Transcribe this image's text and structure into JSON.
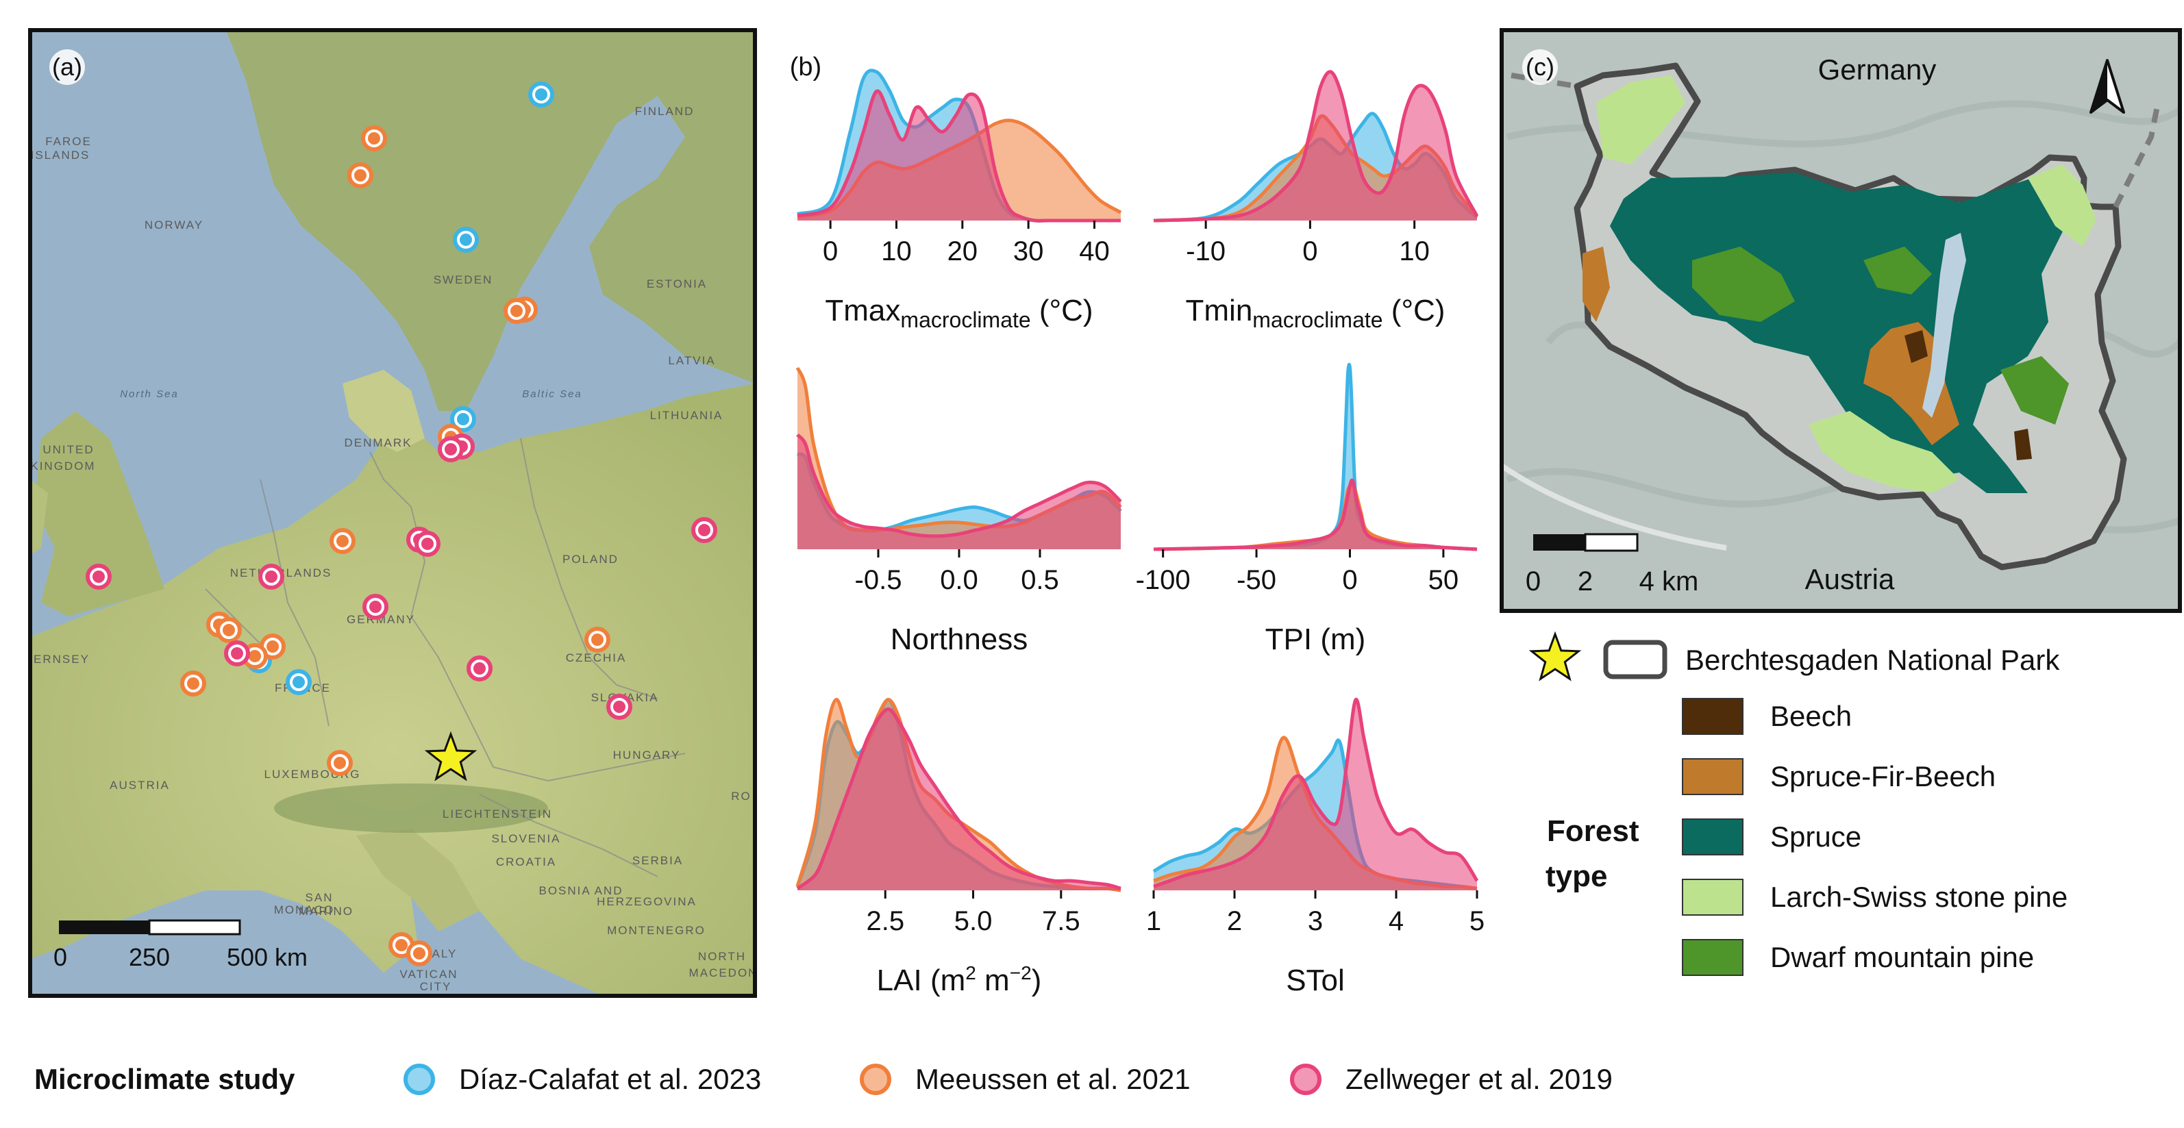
{
  "panels": {
    "a": {
      "label": "(a)"
    },
    "b": {
      "label": "(b)"
    },
    "c": {
      "label": "(c)"
    }
  },
  "colors": {
    "diaz": "#3cb4e6",
    "meeussen": "#f07f3c",
    "zellweger": "#e8427a",
    "star": "#f5f021",
    "beech": "#4f2c0a",
    "spruce_fir_beech": "#c07a2c",
    "spruce": "#0a6b5e",
    "larch": "#bde28e",
    "dwarf_pine": "#4e952a",
    "park_outline": "#4a4a4a"
  },
  "map_a": {
    "country_labels": [
      "FAROE",
      "ISLANDS",
      "NORWAY",
      "SWEDEN",
      "FINLAND",
      "ESTONIA",
      "LATVIA",
      "LITHUANIA",
      "DENMARK",
      "UNITED",
      "KINGDOM",
      "NETHERLANDS",
      "GERMANY",
      "POLAND",
      "CZECHIA",
      "SLOVAKIA",
      "HUNGARY",
      "AUSTRIA",
      "FRANCE",
      "LUXEMBOURG",
      "LIECHTENSTEIN",
      "SLOVENIA",
      "CROATIA",
      "BOSNIA AND",
      "HERZEGOVINA",
      "MONTENEGRO",
      "SERBIA",
      "SAN",
      "MARINO",
      "MONACO",
      "ITALY",
      "VATICAN",
      "CITY",
      "NORTH",
      "MACEDON",
      "ERNSEY",
      "RO",
      "North Sea",
      "Baltic Sea"
    ],
    "scalebar": {
      "ticks": [
        "0",
        "250",
        "500 km"
      ]
    },
    "points": {
      "diaz": [
        [
          790,
          138
        ],
        [
          680,
          350
        ],
        [
          676,
          612
        ],
        [
          378,
          964
        ],
        [
          436,
          996
        ]
      ],
      "meeussen": [
        [
          546,
          202
        ],
        [
          526,
          256
        ],
        [
          766,
          452
        ],
        [
          754,
          454
        ],
        [
          658,
          638
        ],
        [
          500,
          790
        ],
        [
          320,
          912
        ],
        [
          334,
          920
        ],
        [
          398,
          944
        ],
        [
          372,
          958
        ],
        [
          282,
          998
        ],
        [
          872,
          934
        ],
        [
          496,
          1114
        ],
        [
          586,
          1380
        ],
        [
          612,
          1392
        ]
      ],
      "zellweger": [
        [
          674,
          652
        ],
        [
          658,
          656
        ],
        [
          1028,
          774
        ],
        [
          612,
          788
        ],
        [
          624,
          794
        ],
        [
          144,
          842
        ],
        [
          396,
          842
        ],
        [
          548,
          886
        ],
        [
          346,
          954
        ],
        [
          700,
          976
        ],
        [
          904,
          1032
        ]
      ]
    },
    "star": [
      658,
      1108
    ]
  },
  "chart_data": [
    {
      "type": "area",
      "title": "",
      "xlabel_main": "Tmax",
      "xlabel_sub": "macroclimate",
      "xlabel_unit": " (°C)",
      "xlim": [
        -5,
        44
      ],
      "ticks": [
        0,
        10,
        20,
        30,
        40
      ],
      "tick_labels": [
        "0",
        "10",
        "20",
        "30",
        "40"
      ],
      "x": [
        -5,
        0,
        3,
        5,
        7,
        9,
        11,
        13,
        15,
        17,
        19,
        21,
        23,
        25,
        27,
        29,
        31,
        33,
        35,
        37,
        39,
        41,
        44
      ],
      "series": [
        {
          "key": "diaz",
          "values": [
            0.04,
            0.12,
            0.55,
            0.88,
            0.92,
            0.8,
            0.62,
            0.58,
            0.64,
            0.7,
            0.75,
            0.7,
            0.45,
            0.18,
            0.05,
            0.02,
            0,
            0,
            0,
            0,
            0,
            0,
            0
          ]
        },
        {
          "key": "meeussen",
          "values": [
            0.02,
            0.06,
            0.18,
            0.3,
            0.36,
            0.34,
            0.32,
            0.34,
            0.38,
            0.42,
            0.46,
            0.5,
            0.55,
            0.6,
            0.62,
            0.6,
            0.55,
            0.48,
            0.4,
            0.3,
            0.2,
            0.12,
            0.05
          ]
        },
        {
          "key": "zellweger",
          "values": [
            0.03,
            0.08,
            0.3,
            0.55,
            0.8,
            0.65,
            0.5,
            0.7,
            0.62,
            0.55,
            0.65,
            0.78,
            0.7,
            0.3,
            0.08,
            0.02,
            0,
            0,
            0,
            0,
            0,
            0,
            0
          ]
        }
      ]
    },
    {
      "type": "area",
      "title": "",
      "xlabel_main": "Tmin",
      "xlabel_sub": "macroclimate",
      "xlabel_unit": " (°C)",
      "xlim": [
        -15,
        16
      ],
      "ticks": [
        -10,
        0,
        10
      ],
      "tick_labels": [
        "-10",
        "0",
        "10"
      ],
      "x": [
        -15,
        -10,
        -7,
        -5,
        -3,
        -1,
        0,
        1,
        2,
        3,
        4,
        5,
        6,
        7,
        8,
        9,
        10,
        11,
        12,
        13,
        14,
        16
      ],
      "series": [
        {
          "key": "diaz",
          "values": [
            0,
            0.02,
            0.12,
            0.25,
            0.38,
            0.45,
            0.5,
            0.55,
            0.5,
            0.45,
            0.55,
            0.65,
            0.72,
            0.62,
            0.45,
            0.35,
            0.38,
            0.45,
            0.4,
            0.3,
            0.15,
            0.02
          ]
        },
        {
          "key": "meeussen",
          "values": [
            0,
            0.01,
            0.05,
            0.15,
            0.3,
            0.45,
            0.55,
            0.7,
            0.65,
            0.55,
            0.45,
            0.4,
            0.35,
            0.3,
            0.32,
            0.38,
            0.45,
            0.5,
            0.45,
            0.35,
            0.2,
            0.03
          ]
        },
        {
          "key": "zellweger",
          "values": [
            0,
            0.01,
            0.03,
            0.08,
            0.18,
            0.35,
            0.6,
            0.9,
            1.0,
            0.85,
            0.55,
            0.3,
            0.2,
            0.2,
            0.35,
            0.7,
            0.88,
            0.9,
            0.8,
            0.6,
            0.3,
            0.03
          ]
        }
      ]
    },
    {
      "type": "area",
      "title": "",
      "xlabel_main": "Northness",
      "xlabel_sub": "",
      "xlabel_unit": "",
      "xlim": [
        -1,
        1
      ],
      "ticks": [
        -0.5,
        0,
        0.5
      ],
      "tick_labels": [
        "-0.5",
        "0.0",
        "0.5"
      ],
      "x": [
        -1,
        -0.95,
        -0.9,
        -0.8,
        -0.7,
        -0.6,
        -0.5,
        -0.4,
        -0.3,
        -0.2,
        -0.1,
        0,
        0.1,
        0.2,
        0.3,
        0.4,
        0.5,
        0.6,
        0.7,
        0.8,
        0.9,
        1
      ],
      "series": [
        {
          "key": "diaz",
          "values": [
            0.5,
            0.48,
            0.35,
            0.18,
            0.12,
            0.1,
            0.1,
            0.12,
            0.15,
            0.17,
            0.19,
            0.21,
            0.22,
            0.2,
            0.17,
            0.15,
            0.18,
            0.22,
            0.26,
            0.3,
            0.28,
            0.2
          ]
        },
        {
          "key": "meeussen",
          "values": [
            0.95,
            0.85,
            0.55,
            0.25,
            0.12,
            0.1,
            0.1,
            0.11,
            0.12,
            0.13,
            0.14,
            0.14,
            0.13,
            0.12,
            0.12,
            0.14,
            0.18,
            0.22,
            0.26,
            0.28,
            0.3,
            0.22
          ]
        },
        {
          "key": "zellweger",
          "values": [
            0.6,
            0.55,
            0.4,
            0.22,
            0.15,
            0.12,
            0.11,
            0.1,
            0.08,
            0.07,
            0.07,
            0.08,
            0.1,
            0.12,
            0.15,
            0.2,
            0.24,
            0.28,
            0.32,
            0.35,
            0.33,
            0.25
          ]
        }
      ]
    },
    {
      "type": "area",
      "title": "",
      "xlabel_main": "TPI (m)",
      "xlabel_sub": "",
      "xlabel_unit": "",
      "xlim": [
        -105,
        68
      ],
      "ticks": [
        -100,
        -50,
        0,
        50
      ],
      "tick_labels": [
        "-100",
        "-50",
        "0",
        "50"
      ],
      "x": [
        -105,
        -60,
        -40,
        -30,
        -20,
        -15,
        -10,
        -6,
        -4,
        -3,
        -2,
        -1,
        0,
        1,
        2,
        3,
        4,
        6,
        8,
        12,
        20,
        30,
        40,
        50,
        68
      ],
      "series": [
        {
          "key": "diaz",
          "values": [
            0,
            0.01,
            0.02,
            0.02,
            0.03,
            0.05,
            0.08,
            0.15,
            0.3,
            0.5,
            0.75,
            0.98,
            1.0,
            0.8,
            0.5,
            0.3,
            0.2,
            0.15,
            0.1,
            0.06,
            0.03,
            0.02,
            0.02,
            0.01,
            0
          ]
        },
        {
          "key": "meeussen",
          "values": [
            0,
            0.01,
            0.03,
            0.04,
            0.05,
            0.06,
            0.08,
            0.12,
            0.18,
            0.22,
            0.28,
            0.33,
            0.35,
            0.36,
            0.35,
            0.32,
            0.28,
            0.2,
            0.12,
            0.08,
            0.05,
            0.03,
            0.02,
            0.01,
            0
          ]
        },
        {
          "key": "zellweger",
          "values": [
            0,
            0.01,
            0.02,
            0.03,
            0.05,
            0.06,
            0.08,
            0.12,
            0.16,
            0.2,
            0.25,
            0.3,
            0.35,
            0.38,
            0.36,
            0.3,
            0.25,
            0.18,
            0.1,
            0.06,
            0.04,
            0.02,
            0.02,
            0.01,
            0
          ]
        }
      ]
    },
    {
      "type": "area",
      "title": "",
      "xlabel_main": "LAI (m",
      "xlabel_sub": "",
      "xlabel_unit": "",
      "xlabel_sup1": "2",
      "xlabel_mid": " m",
      "xlabel_sup2": "−2",
      "xlabel_end": ")",
      "xlim": [
        0,
        9.2
      ],
      "ticks": [
        2.5,
        5.0,
        7.5
      ],
      "tick_labels": [
        "2.5",
        "5.0",
        "7.5"
      ],
      "x": [
        0,
        0.5,
        0.8,
        1.1,
        1.4,
        1.7,
        2.0,
        2.3,
        2.6,
        2.9,
        3.2,
        3.5,
        3.9,
        4.3,
        4.7,
        5.1,
        5.5,
        5.9,
        6.3,
        6.8,
        7.3,
        7.8,
        8.3,
        8.8,
        9.2
      ],
      "series": [
        {
          "key": "diaz",
          "values": [
            0.02,
            0.3,
            0.7,
            0.88,
            0.82,
            0.72,
            0.78,
            0.9,
            1.0,
            0.85,
            0.6,
            0.45,
            0.35,
            0.25,
            0.2,
            0.15,
            0.1,
            0.07,
            0.05,
            0.03,
            0.02,
            0.01,
            0.01,
            0.01,
            0
          ]
        },
        {
          "key": "meeussen",
          "values": [
            0.02,
            0.35,
            0.8,
            1.0,
            0.85,
            0.7,
            0.78,
            0.92,
            1.0,
            0.9,
            0.7,
            0.55,
            0.48,
            0.4,
            0.35,
            0.3,
            0.25,
            0.18,
            0.12,
            0.07,
            0.04,
            0.02,
            0.01,
            0.01,
            0
          ]
        },
        {
          "key": "zellweger",
          "values": [
            0.01,
            0.08,
            0.2,
            0.35,
            0.5,
            0.65,
            0.8,
            0.9,
            0.95,
            0.88,
            0.78,
            0.66,
            0.55,
            0.44,
            0.34,
            0.26,
            0.2,
            0.14,
            0.1,
            0.07,
            0.05,
            0.05,
            0.04,
            0.03,
            0.01
          ]
        }
      ]
    },
    {
      "type": "area",
      "title": "",
      "xlabel_main": "STol",
      "xlabel_sub": "",
      "xlabel_unit": "",
      "xlim": [
        1,
        5
      ],
      "ticks": [
        1,
        2,
        3,
        4,
        5
      ],
      "tick_labels": [
        "1",
        "2",
        "3",
        "4",
        "5"
      ],
      "x": [
        1,
        1.2,
        1.4,
        1.6,
        1.8,
        2.0,
        2.2,
        2.4,
        2.6,
        2.8,
        3.0,
        3.2,
        3.3,
        3.4,
        3.5,
        3.6,
        3.7,
        3.8,
        4.0,
        4.2,
        4.4,
        4.6,
        4.8,
        5.0
      ],
      "series": [
        {
          "key": "diaz",
          "values": [
            0.1,
            0.15,
            0.18,
            0.2,
            0.25,
            0.32,
            0.3,
            0.35,
            0.45,
            0.55,
            0.62,
            0.72,
            0.78,
            0.55,
            0.3,
            0.15,
            0.1,
            0.08,
            0.06,
            0.05,
            0.04,
            0.03,
            0.02,
            0.01
          ]
        },
        {
          "key": "meeussen",
          "values": [
            0.05,
            0.08,
            0.1,
            0.12,
            0.18,
            0.28,
            0.35,
            0.5,
            0.8,
            0.6,
            0.4,
            0.3,
            0.25,
            0.2,
            0.15,
            0.12,
            0.1,
            0.08,
            0.06,
            0.04,
            0.03,
            0.02,
            0.02,
            0.01
          ]
        },
        {
          "key": "zellweger",
          "values": [
            0.02,
            0.05,
            0.08,
            0.1,
            0.12,
            0.15,
            0.2,
            0.3,
            0.5,
            0.6,
            0.45,
            0.35,
            0.4,
            0.7,
            1.0,
            0.8,
            0.6,
            0.45,
            0.3,
            0.32,
            0.25,
            0.2,
            0.18,
            0.05
          ]
        }
      ]
    }
  ],
  "map_c": {
    "label_top": "Germany",
    "label_bottom": "Austria",
    "scalebar": {
      "ticks": [
        "0",
        "2",
        "4 km"
      ]
    }
  },
  "legend_right": {
    "park_label": "Berchtesgaden National Park",
    "forest_title_1": "Forest",
    "forest_title_2": "type",
    "items": [
      {
        "label": "Beech",
        "color_key": "beech"
      },
      {
        "label": "Spruce-Fir-Beech",
        "color_key": "spruce_fir_beech"
      },
      {
        "label": "Spruce",
        "color_key": "spruce"
      },
      {
        "label": "Larch-Swiss stone pine",
        "color_key": "larch"
      },
      {
        "label": "Dwarf mountain pine",
        "color_key": "dwarf_pine"
      }
    ]
  },
  "legend_bottom": {
    "title": "Microclimate study",
    "items": [
      {
        "label": "Díaz-Calafat et al. 2023",
        "color_key": "diaz"
      },
      {
        "label": "Meeussen et al. 2021",
        "color_key": "meeussen"
      },
      {
        "label": "Zellweger et al. 2019",
        "color_key": "zellweger"
      }
    ]
  }
}
